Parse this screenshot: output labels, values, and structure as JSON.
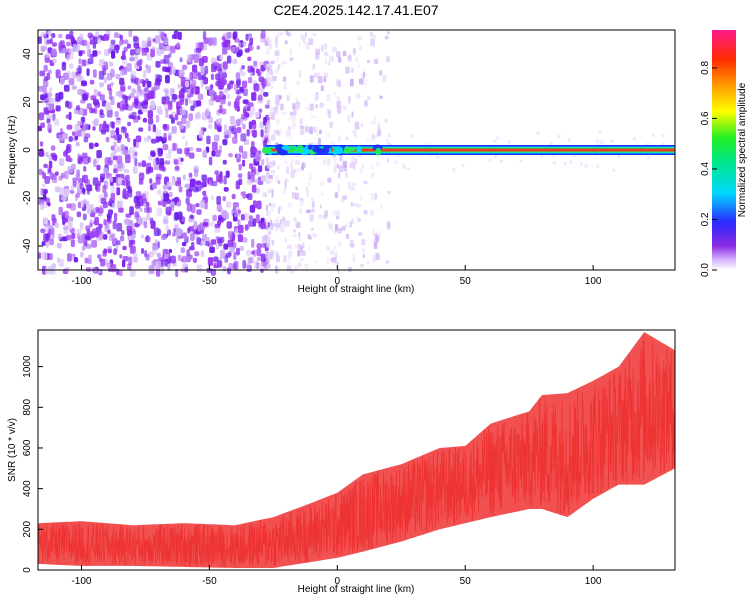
{
  "figure": {
    "title": "C2E4.2025.142.17.41.E07"
  },
  "chart_data": [
    {
      "type": "heatmap",
      "title": "C2E4.2025.142.17.41.E07",
      "xlabel": "Height of straight line (km)",
      "ylabel": "Frequency (Hz)",
      "xlim": [
        -117,
        132
      ],
      "ylim": [
        -50,
        50
      ],
      "x_ticks": [
        -100,
        -50,
        0,
        50,
        100
      ],
      "y_ticks": [
        -40,
        -20,
        0,
        20,
        40
      ],
      "grid": false,
      "colorbar": {
        "label": "Normalized spectral amplitude",
        "range": [
          0.0,
          0.95
        ],
        "ticks": [
          0.0,
          0.2,
          0.4,
          0.6,
          0.8
        ],
        "colormap": "rainbow (purple-blue-cyan-green-yellow-orange-red-magenta)"
      },
      "regions": [
        {
          "x_range": [
            -117,
            -28
          ],
          "frequency_range": [
            -50,
            50
          ],
          "amplitude_range": [
            0.05,
            0.15
          ],
          "description_color": "#7a1ff0"
        },
        {
          "x_range": [
            -28,
            20
          ],
          "frequency_range": [
            -50,
            50
          ],
          "amplitude_range": [
            0.0,
            0.05
          ],
          "description_color": "#c9a8f5"
        },
        {
          "x_range": [
            -28,
            132
          ],
          "frequency_range": [
            -1.5,
            1.5
          ],
          "amplitude_range": [
            0.8,
            0.95
          ],
          "description_color": "#e83a2a"
        }
      ],
      "line": {
        "frequency": 0,
        "x_start": -28,
        "x_end": 132
      }
    },
    {
      "type": "line",
      "xlabel": "Height of straight line (km)",
      "ylabel": "SNR (10 * v/v)",
      "xlim": [
        -117,
        132
      ],
      "ylim": [
        0,
        1180
      ],
      "x_ticks": [
        -100,
        -50,
        0,
        50,
        100
      ],
      "y_ticks": [
        0,
        200,
        400,
        600,
        800,
        1000
      ],
      "grid": false,
      "series_color": "#ee3333",
      "envelope": {
        "x": [
          -117,
          -100,
          -80,
          -60,
          -40,
          -25,
          -10,
          0,
          10,
          25,
          40,
          50,
          60,
          75,
          80,
          90,
          100,
          110,
          120,
          132
        ],
        "lower": [
          30,
          20,
          20,
          15,
          10,
          10,
          40,
          60,
          90,
          140,
          200,
          230,
          260,
          300,
          300,
          260,
          350,
          420,
          420,
          500
        ],
        "upper": [
          230,
          240,
          220,
          230,
          220,
          260,
          330,
          380,
          470,
          520,
          600,
          610,
          720,
          780,
          860,
          870,
          930,
          1000,
          1170,
          1080
        ]
      }
    }
  ]
}
